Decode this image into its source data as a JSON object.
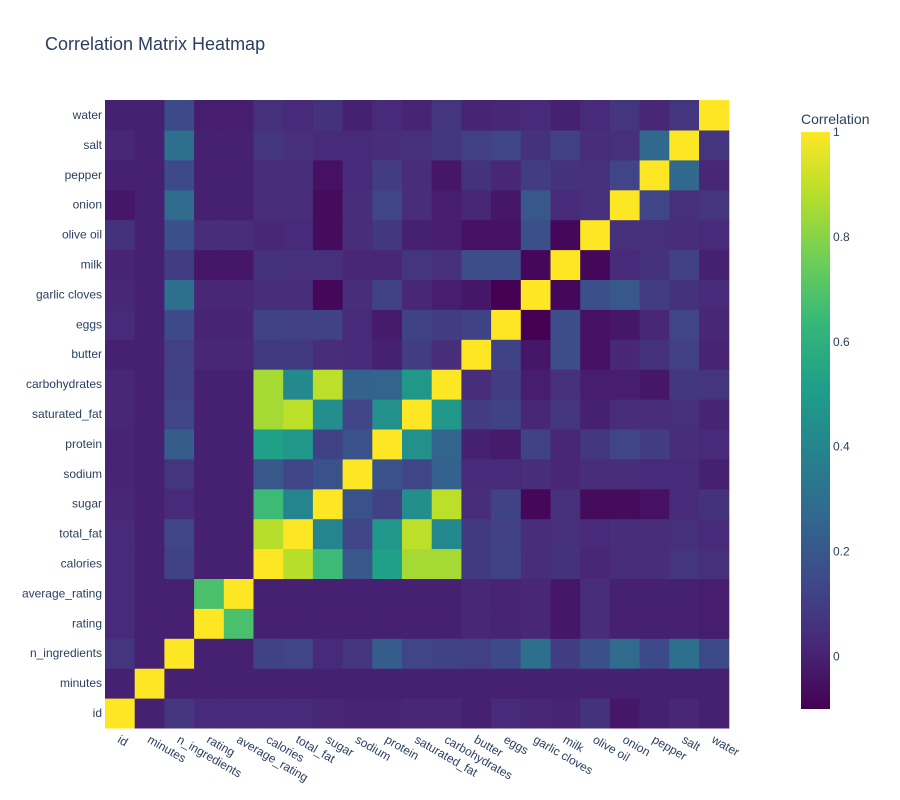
{
  "chart_data": {
    "type": "heatmap",
    "title": "Correlation Matrix Heatmap",
    "colorbar_title": "Correlation",
    "colorscale": "viridis",
    "zrange": [
      -0.1,
      1
    ],
    "colorbar_ticks": [
      {
        "value": 0,
        "label": "0"
      },
      {
        "value": 0.2,
        "label": "0.2"
      },
      {
        "value": 0.4,
        "label": "0.4"
      },
      {
        "value": 0.6,
        "label": "0.6"
      },
      {
        "value": 0.8,
        "label": "0.8"
      },
      {
        "value": 1,
        "label": "1"
      }
    ],
    "labels": [
      "id",
      "minutes",
      "n_ingredients",
      "rating",
      "average_rating",
      "calories",
      "total_fat",
      "sugar",
      "sodium",
      "protein",
      "saturated_fat",
      "carbohydrates",
      "butter",
      "eggs",
      "garlic cloves",
      "milk",
      "olive oil",
      "onion",
      "pepper",
      "salt",
      "water"
    ],
    "matrix": [
      [
        1.0,
        0.0,
        0.07,
        0.03,
        0.03,
        0.03,
        0.03,
        0.02,
        0.01,
        0.01,
        0.02,
        0.02,
        0.0,
        0.03,
        0.02,
        0.01,
        0.06,
        -0.03,
        0.0,
        0.02,
        0.0
      ],
      [
        0.0,
        1.0,
        0.0,
        0.0,
        0.0,
        0.0,
        0.0,
        0.0,
        0.0,
        0.0,
        0.0,
        0.0,
        0.0,
        0.0,
        0.0,
        0.0,
        0.0,
        0.0,
        0.0,
        0.0,
        0.0
      ],
      [
        0.07,
        0.0,
        1.0,
        0.0,
        0.0,
        0.12,
        0.13,
        0.03,
        0.07,
        0.22,
        0.13,
        0.12,
        0.11,
        0.15,
        0.3,
        0.1,
        0.17,
        0.28,
        0.15,
        0.3,
        0.15
      ],
      [
        0.03,
        0.0,
        0.0,
        1.0,
        0.68,
        0.0,
        0.0,
        0.0,
        0.0,
        0.0,
        0.0,
        0.0,
        0.02,
        0.01,
        0.02,
        -0.03,
        0.04,
        0.0,
        0.0,
        0.0,
        -0.01
      ],
      [
        0.03,
        0.0,
        0.0,
        0.68,
        1.0,
        0.0,
        0.0,
        0.0,
        0.0,
        0.0,
        0.0,
        0.0,
        0.02,
        0.01,
        0.02,
        -0.03,
        0.04,
        0.0,
        0.0,
        0.0,
        -0.01
      ],
      [
        0.03,
        0.0,
        0.12,
        0.0,
        0.0,
        1.0,
        0.88,
        0.65,
        0.2,
        0.52,
        0.85,
        0.85,
        0.09,
        0.12,
        0.04,
        0.06,
        0.02,
        0.04,
        0.04,
        0.07,
        0.05
      ],
      [
        0.03,
        0.0,
        0.13,
        0.0,
        0.0,
        0.88,
        1.0,
        0.4,
        0.13,
        0.48,
        0.89,
        0.42,
        0.09,
        0.11,
        0.04,
        0.05,
        0.03,
        0.04,
        0.04,
        0.05,
        0.03
      ],
      [
        0.02,
        0.0,
        0.03,
        0.0,
        0.0,
        0.65,
        0.4,
        1.0,
        0.18,
        0.12,
        0.44,
        0.89,
        0.04,
        0.12,
        -0.08,
        0.05,
        -0.07,
        -0.07,
        -0.05,
        0.03,
        0.06
      ],
      [
        0.01,
        0.0,
        0.07,
        0.0,
        0.0,
        0.2,
        0.13,
        0.18,
        1.0,
        0.18,
        0.13,
        0.24,
        0.03,
        0.03,
        0.04,
        0.02,
        0.04,
        0.04,
        0.03,
        0.03,
        0.0
      ],
      [
        0.01,
        0.0,
        0.22,
        0.0,
        0.0,
        0.52,
        0.48,
        0.12,
        0.18,
        1.0,
        0.45,
        0.25,
        0.0,
        -0.02,
        0.12,
        0.02,
        0.08,
        0.13,
        0.1,
        0.04,
        0.03
      ],
      [
        0.02,
        0.0,
        0.13,
        0.0,
        0.0,
        0.85,
        0.89,
        0.44,
        0.13,
        0.45,
        1.0,
        0.48,
        0.1,
        0.12,
        0.02,
        0.07,
        0.0,
        0.04,
        0.04,
        0.05,
        0.01
      ],
      [
        0.02,
        0.0,
        0.12,
        0.0,
        0.0,
        0.85,
        0.42,
        0.89,
        0.24,
        0.25,
        0.48,
        1.0,
        0.04,
        0.1,
        -0.01,
        0.05,
        -0.01,
        -0.01,
        -0.03,
        0.08,
        0.07
      ],
      [
        0.0,
        0.0,
        0.11,
        0.02,
        0.02,
        0.09,
        0.09,
        0.04,
        0.03,
        0.0,
        0.1,
        0.04,
        1.0,
        0.12,
        -0.03,
        0.16,
        -0.05,
        0.02,
        0.06,
        0.11,
        0.01
      ],
      [
        0.03,
        0.0,
        0.15,
        0.01,
        0.01,
        0.12,
        0.11,
        0.12,
        0.03,
        -0.02,
        0.12,
        0.1,
        0.12,
        1.0,
        -0.1,
        0.16,
        -0.05,
        -0.03,
        0.02,
        0.13,
        0.02
      ],
      [
        0.02,
        0.0,
        0.3,
        0.02,
        0.02,
        0.04,
        0.04,
        -0.08,
        0.04,
        0.12,
        0.02,
        -0.01,
        -0.03,
        -0.1,
        1.0,
        -0.08,
        0.17,
        0.2,
        0.1,
        0.06,
        0.03
      ],
      [
        0.01,
        0.0,
        0.1,
        -0.03,
        -0.03,
        0.06,
        0.05,
        0.05,
        0.02,
        0.02,
        0.07,
        0.05,
        0.16,
        0.16,
        -0.08,
        1.0,
        -0.08,
        0.03,
        0.06,
        0.11,
        0.0
      ],
      [
        0.06,
        0.0,
        0.17,
        0.04,
        0.04,
        0.02,
        0.03,
        -0.07,
        0.04,
        0.08,
        0.0,
        -0.01,
        -0.05,
        -0.05,
        0.17,
        -0.08,
        1.0,
        0.05,
        0.05,
        0.04,
        0.03
      ],
      [
        -0.03,
        0.0,
        0.28,
        0.0,
        0.0,
        0.04,
        0.04,
        -0.07,
        0.04,
        0.13,
        0.04,
        -0.01,
        0.02,
        -0.03,
        0.2,
        0.03,
        0.05,
        1.0,
        0.13,
        0.05,
        0.07
      ],
      [
        0.0,
        0.0,
        0.15,
        0.0,
        0.0,
        0.04,
        0.04,
        -0.05,
        0.03,
        0.1,
        0.04,
        -0.03,
        0.06,
        0.02,
        0.1,
        0.06,
        0.05,
        0.13,
        1.0,
        0.27,
        0.02
      ],
      [
        0.02,
        0.0,
        0.3,
        0.0,
        0.0,
        0.07,
        0.05,
        0.03,
        0.03,
        0.04,
        0.05,
        0.08,
        0.11,
        0.13,
        0.06,
        0.11,
        0.04,
        0.05,
        0.27,
        1.0,
        0.07
      ],
      [
        0.0,
        0.0,
        0.15,
        -0.01,
        -0.01,
        0.05,
        0.03,
        0.06,
        0.0,
        0.03,
        0.01,
        0.07,
        0.01,
        0.02,
        0.03,
        0.0,
        0.03,
        0.07,
        0.02,
        0.07,
        1.0
      ]
    ]
  }
}
